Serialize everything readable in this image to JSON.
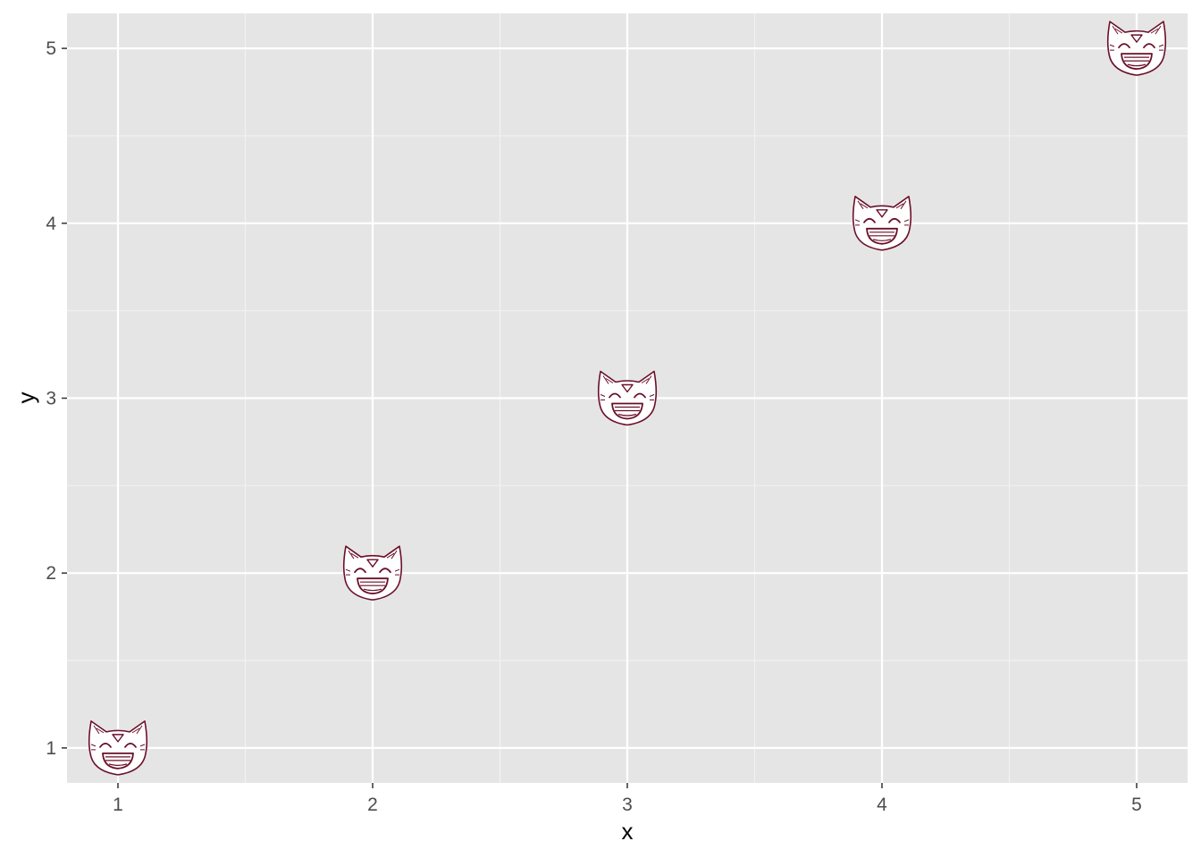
{
  "chart_data": {
    "type": "scatter",
    "title": "",
    "xlabel": "x",
    "ylabel": "y",
    "x": [
      1,
      2,
      3,
      4,
      5
    ],
    "y": [
      1,
      2,
      3,
      4,
      5
    ],
    "xlim": [
      0.8,
      5.2
    ],
    "ylim": [
      0.8,
      5.2
    ],
    "x_ticks": [
      1,
      2,
      3,
      4,
      5
    ],
    "y_ticks": [
      1,
      2,
      3,
      4,
      5
    ],
    "x_tick_labels": [
      "1",
      "2",
      "3",
      "4",
      "5"
    ],
    "y_tick_labels": [
      "1",
      "2",
      "3",
      "4",
      "5"
    ],
    "marker": "grinning-cat-face-icon",
    "grid": true,
    "legend": "none",
    "colors": {
      "panel_background": "#e5e5e5",
      "grid_major": "#ffffff",
      "grid_minor": "#f2f2f2",
      "marker_stroke": "#6b0f2a",
      "tick_text": "#4d4d4d",
      "axis_title_text": "#000000"
    }
  }
}
